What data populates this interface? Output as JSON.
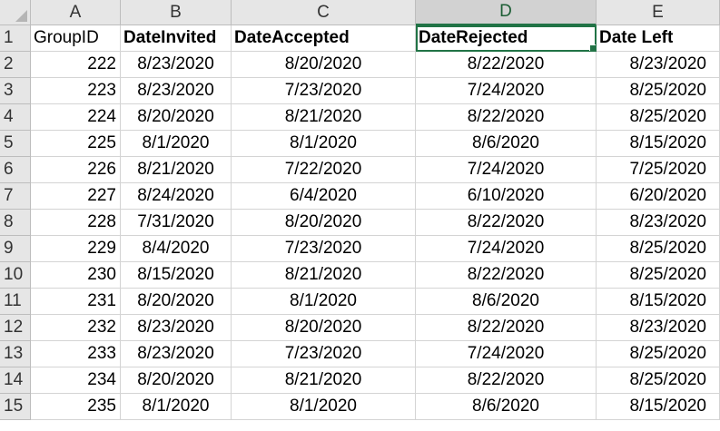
{
  "columns": [
    "A",
    "B",
    "C",
    "D",
    "E"
  ],
  "selected_column": "D",
  "headers": [
    "GroupID",
    "DateInvited",
    "DateAccepted",
    "DateRejected",
    "Date Left"
  ],
  "rows": [
    [
      "222",
      "8/23/2020",
      "8/20/2020",
      "8/22/2020",
      "8/23/2020"
    ],
    [
      "223",
      "8/23/2020",
      "7/23/2020",
      "7/24/2020",
      "8/25/2020"
    ],
    [
      "224",
      "8/20/2020",
      "8/21/2020",
      "8/22/2020",
      "8/25/2020"
    ],
    [
      "225",
      "8/1/2020",
      "8/1/2020",
      "8/6/2020",
      "8/15/2020"
    ],
    [
      "226",
      "8/21/2020",
      "7/22/2020",
      "7/24/2020",
      "7/25/2020"
    ],
    [
      "227",
      "8/24/2020",
      "6/4/2020",
      "6/10/2020",
      "6/20/2020"
    ],
    [
      "228",
      "7/31/2020",
      "8/20/2020",
      "8/22/2020",
      "8/23/2020"
    ],
    [
      "229",
      "8/4/2020",
      "7/23/2020",
      "7/24/2020",
      "8/25/2020"
    ],
    [
      "230",
      "8/15/2020",
      "8/21/2020",
      "8/22/2020",
      "8/25/2020"
    ],
    [
      "231",
      "8/20/2020",
      "8/1/2020",
      "8/6/2020",
      "8/15/2020"
    ],
    [
      "232",
      "8/23/2020",
      "8/20/2020",
      "8/22/2020",
      "8/23/2020"
    ],
    [
      "233",
      "8/23/2020",
      "7/23/2020",
      "7/24/2020",
      "8/25/2020"
    ],
    [
      "234",
      "8/20/2020",
      "8/21/2020",
      "8/22/2020",
      "8/25/2020"
    ],
    [
      "235",
      "8/1/2020",
      "8/1/2020",
      "8/6/2020",
      "8/15/2020"
    ]
  ],
  "accent_color": "#217346"
}
